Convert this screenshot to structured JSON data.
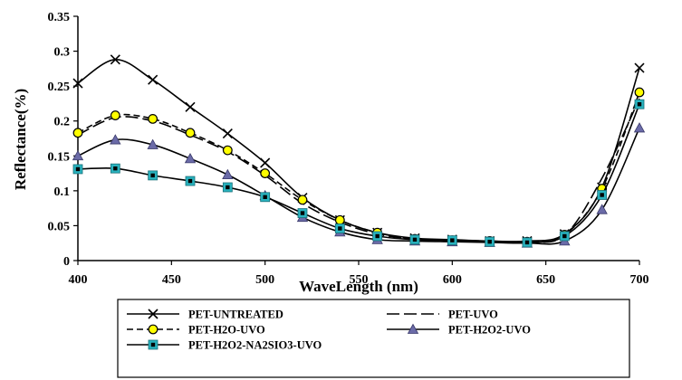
{
  "chart_data": {
    "type": "line",
    "xlabel": "WaveLength (nm)",
    "ylabel": "Reflectance(%)",
    "xlim": [
      400,
      700
    ],
    "ylim": [
      0,
      0.35
    ],
    "xticks": [
      "400",
      "450",
      "500",
      "550",
      "600",
      "650",
      "700"
    ],
    "yticks": [
      "0",
      "0.05",
      "0.1",
      "0.15",
      "0.2",
      "0.25",
      "0.3",
      "0.35"
    ],
    "grid": false,
    "legend_position": "bottom",
    "series": [
      {
        "name": "PET-UNTREATED",
        "marker": "x",
        "line": "solid",
        "color": "#000000",
        "x": [
          400,
          420,
          440,
          460,
          480,
          500,
          520,
          540,
          560,
          580,
          600,
          620,
          640,
          660,
          680,
          700
        ],
        "y": [
          0.254,
          0.288,
          0.259,
          0.22,
          0.182,
          0.14,
          0.09,
          0.058,
          0.04,
          0.032,
          0.03,
          0.028,
          0.028,
          0.038,
          0.105,
          0.276
        ]
      },
      {
        "name": "PET-UVO",
        "marker": "none",
        "line": "long-dash",
        "color": "#000000",
        "x": [
          400,
          420,
          440,
          460,
          480,
          500,
          520,
          540,
          560,
          580,
          600,
          620,
          640,
          660,
          680,
          700
        ],
        "y": [
          0.18,
          0.205,
          0.2,
          0.18,
          0.156,
          0.122,
          0.082,
          0.055,
          0.038,
          0.031,
          0.029,
          0.027,
          0.027,
          0.036,
          0.118,
          0.232
        ]
      },
      {
        "name": "PET-H2O-UVO",
        "marker": "circle",
        "line": "dashed",
        "color": "#000000",
        "markerFill": "#ffff00",
        "x": [
          400,
          420,
          440,
          460,
          480,
          500,
          520,
          540,
          560,
          580,
          600,
          620,
          640,
          660,
          680,
          700
        ],
        "y": [
          0.183,
          0.208,
          0.203,
          0.183,
          0.158,
          0.125,
          0.087,
          0.058,
          0.04,
          0.031,
          0.029,
          0.028,
          0.027,
          0.037,
          0.103,
          0.241
        ]
      },
      {
        "name": "PET-H2O2-UVO",
        "marker": "triangle",
        "line": "solid",
        "color": "#000000",
        "markerFill": "#6b6ba8",
        "x": [
          400,
          420,
          440,
          460,
          480,
          500,
          520,
          540,
          560,
          580,
          600,
          620,
          640,
          660,
          680,
          700
        ],
        "y": [
          0.15,
          0.173,
          0.166,
          0.146,
          0.123,
          0.093,
          0.062,
          0.041,
          0.03,
          0.028,
          0.027,
          0.026,
          0.025,
          0.028,
          0.073,
          0.19
        ]
      },
      {
        "name": "PET-H2O2-NA2SIO3-UVO",
        "marker": "square",
        "line": "solid",
        "color": "#000000",
        "markerFill": "#29b3bf",
        "x": [
          400,
          420,
          440,
          460,
          480,
          500,
          520,
          540,
          560,
          580,
          600,
          620,
          640,
          660,
          680,
          700
        ],
        "y": [
          0.131,
          0.132,
          0.122,
          0.114,
          0.105,
          0.091,
          0.068,
          0.046,
          0.035,
          0.03,
          0.029,
          0.027,
          0.026,
          0.035,
          0.094,
          0.224
        ]
      }
    ]
  }
}
